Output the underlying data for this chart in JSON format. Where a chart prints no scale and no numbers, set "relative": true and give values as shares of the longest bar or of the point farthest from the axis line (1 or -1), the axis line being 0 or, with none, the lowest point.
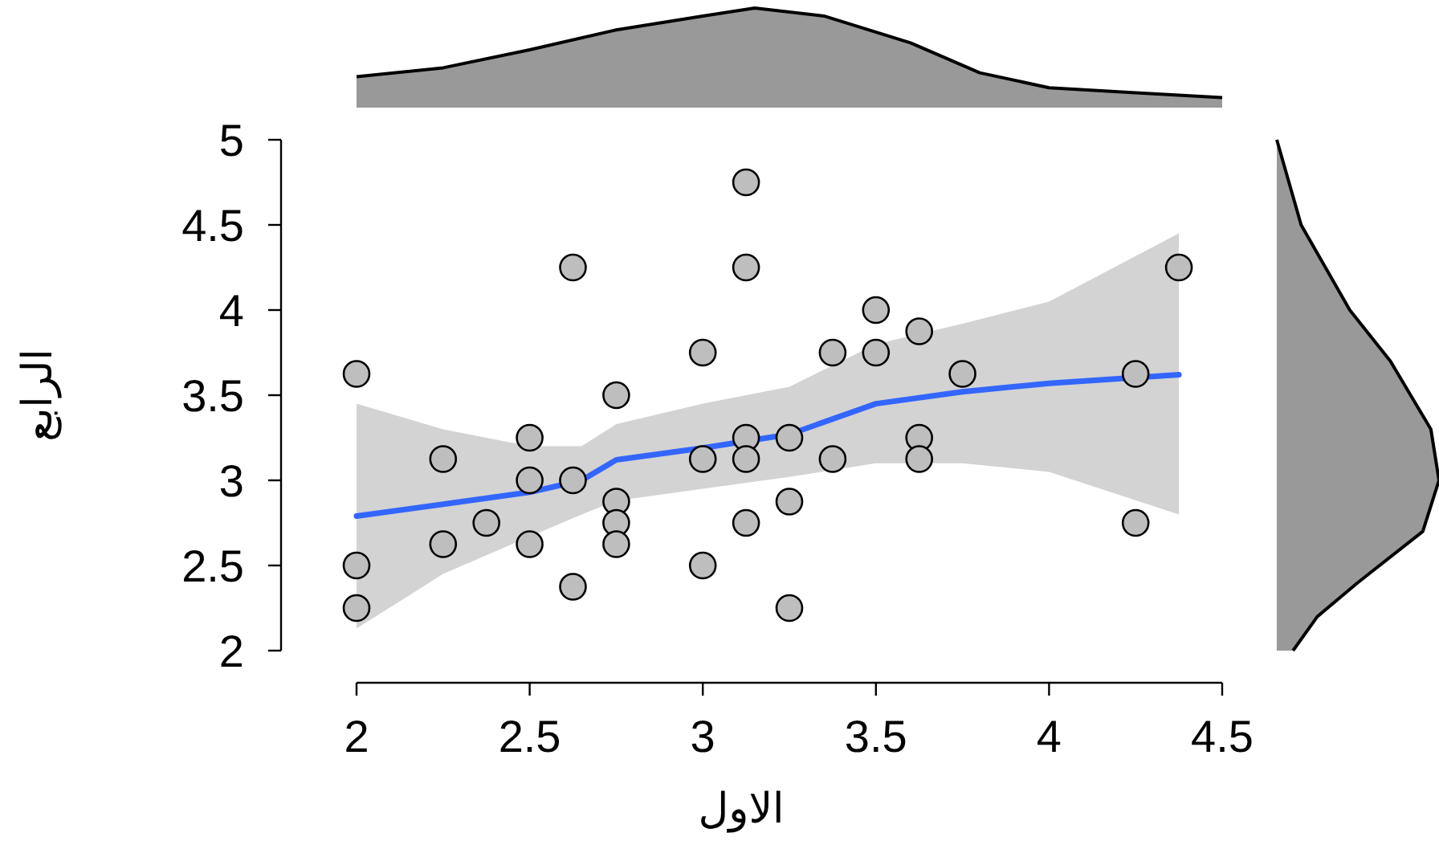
{
  "chart_data": [
    {
      "type": "scatter",
      "xlabel": "الاول",
      "ylabel": "الرابع",
      "xlim": [
        2,
        4.5
      ],
      "xticks": [
        2,
        2.5,
        3,
        3.5,
        4,
        4.5
      ],
      "ylim": [
        2,
        5
      ],
      "yticks": [
        2,
        2.5,
        3,
        3.5,
        4,
        4.5,
        5
      ],
      "grid": false,
      "series": [
        {
          "type": "scatter",
          "color": "#bebebe",
          "marker": "circle",
          "x": [
            2,
            2,
            2,
            2.25,
            2.25,
            2.375,
            2.5,
            2.5,
            2.5,
            2.625,
            2.625,
            2.625,
            2.75,
            2.75,
            2.75,
            2.75,
            3,
            3,
            3,
            3.125,
            3.125,
            3.125,
            3.125,
            3.125,
            3.25,
            3.25,
            3.25,
            3.375,
            3.375,
            3.5,
            3.5,
            3.625,
            3.625,
            3.625,
            3.75,
            4.25,
            4.25,
            4.375
          ],
          "values": [
            3.625,
            2.5,
            2.25,
            3.125,
            2.625,
            2.75,
            3.25,
            3,
            2.625,
            4.25,
            3,
            2.375,
            3.5,
            2.875,
            2.75,
            2.625,
            3.75,
            3.125,
            2.5,
            4.75,
            4.25,
            3.25,
            3.125,
            2.75,
            3.25,
            2.875,
            2.25,
            3.75,
            3.125,
            4,
            3.75,
            3.875,
            3.25,
            3.125,
            3.625,
            3.625,
            2.75,
            4.25
          ]
        },
        {
          "type": "line",
          "color": "#3366ff",
          "x": [
            2,
            2.25,
            2.5,
            2.65,
            2.75,
            3,
            3.25,
            3.5,
            3.75,
            4,
            4.375
          ],
          "values": [
            2.79,
            2.86,
            2.93,
            3,
            3.12,
            3.19,
            3.27,
            3.45,
            3.52,
            3.57,
            3.62
          ],
          "lower": [
            2.13,
            2.45,
            2.67,
            2.8,
            2.88,
            2.95,
            3.02,
            3.1,
            3.1,
            3.05,
            2.8
          ],
          "upper": [
            3.45,
            3.3,
            3.2,
            3.2,
            3.33,
            3.45,
            3.55,
            3.8,
            3.92,
            4.05,
            4.45
          ]
        }
      ]
    },
    {
      "type": "area",
      "relative": true,
      "color": "#999999",
      "xlim": [
        2,
        4.5
      ],
      "x": [
        2,
        2.25,
        2.5,
        2.75,
        3,
        3.15,
        3.35,
        3.6,
        3.8,
        4,
        4.25,
        4.5
      ],
      "values": [
        0.31,
        0.4,
        0.58,
        0.78,
        0.92,
        1,
        0.92,
        0.65,
        0.35,
        0.2,
        0.15,
        0.1
      ]
    },
    {
      "type": "area",
      "relative": true,
      "orientation": "horizontal",
      "color": "#999999",
      "ylim": [
        2,
        5
      ],
      "x": [
        2,
        2.2,
        2.4,
        2.7,
        3,
        3.3,
        3.7,
        4,
        4.5,
        5
      ],
      "values": [
        0.1,
        0.25,
        0.5,
        0.9,
        1,
        0.95,
        0.7,
        0.45,
        0.15,
        0
      ]
    }
  ]
}
